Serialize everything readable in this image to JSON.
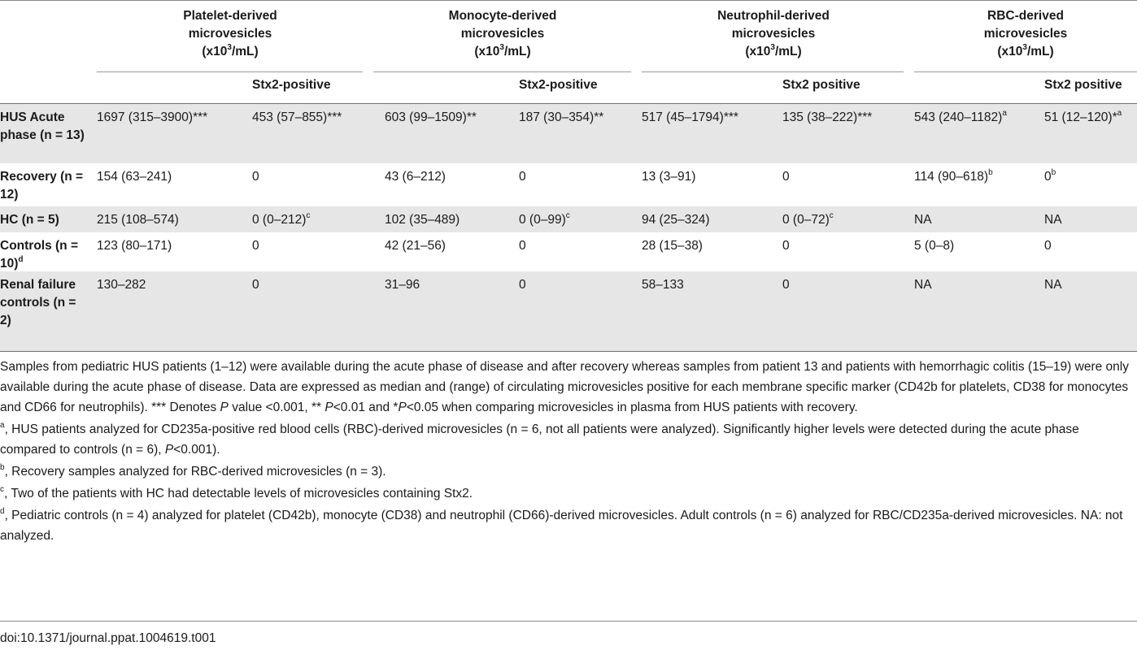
{
  "header": {
    "groups": [
      {
        "l1": "Platelet-derived",
        "l2": "microvesicles",
        "unit_pre": "(x10",
        "unit_sup": "3",
        "unit_post": "/mL)"
      },
      {
        "l1": "Monocyte-derived",
        "l2": "microvesicles",
        "unit_pre": "(x10",
        "unit_sup": "3",
        "unit_post": "/mL)"
      },
      {
        "l1": "Neutrophil-derived",
        "l2": "microvesicles",
        "unit_pre": "(x10",
        "unit_sup": "3",
        "unit_post": "/mL)"
      },
      {
        "l1": "RBC-derived",
        "l2": "microvesicles",
        "unit_pre": "(x10",
        "unit_sup": "3",
        "unit_post": "/mL)"
      }
    ],
    "stx_labels": [
      "Stx2-positive",
      "Stx2-positive",
      "Stx2 positive",
      "Stx2 positive"
    ]
  },
  "rows": [
    {
      "label": "HUS Acute phase (n = 13)",
      "label_sup": "",
      "cells": [
        {
          "t": "1697 (315–3900)***",
          "s": ""
        },
        {
          "t": "453 (57–855)***",
          "s": ""
        },
        {
          "t": "603 (99–1509)**",
          "s": ""
        },
        {
          "t": "187 (30–354)**",
          "s": ""
        },
        {
          "t": "517 (45–1794)***",
          "s": ""
        },
        {
          "t": "135 (38–222)***",
          "s": ""
        },
        {
          "t": "543 (240–1182)",
          "s": "a"
        },
        {
          "t": "51 (12–120)*",
          "s": "a"
        }
      ]
    },
    {
      "label": "Recovery (n = 12)",
      "label_sup": "",
      "cells": [
        {
          "t": "154 (63–241)",
          "s": ""
        },
        {
          "t": "0",
          "s": ""
        },
        {
          "t": "43 (6–212)",
          "s": ""
        },
        {
          "t": "0",
          "s": ""
        },
        {
          "t": "13 (3–91)",
          "s": ""
        },
        {
          "t": "0",
          "s": ""
        },
        {
          "t": "114 (90–618)",
          "s": "b"
        },
        {
          "t": "0",
          "s": "b"
        }
      ]
    },
    {
      "label": "HC (n = 5)",
      "label_sup": "",
      "cells": [
        {
          "t": "215 (108–574)",
          "s": ""
        },
        {
          "t": "0 (0–212)",
          "s": "c"
        },
        {
          "t": "102 (35–489)",
          "s": ""
        },
        {
          "t": "0 (0–99)",
          "s": "c"
        },
        {
          "t": "94 (25–324)",
          "s": ""
        },
        {
          "t": "0 (0–72)",
          "s": "c"
        },
        {
          "t": "NA",
          "s": ""
        },
        {
          "t": "NA",
          "s": ""
        }
      ]
    },
    {
      "label": "Controls (n = 10)",
      "label_sup": "d",
      "cells": [
        {
          "t": "123 (80–171)",
          "s": ""
        },
        {
          "t": "0",
          "s": ""
        },
        {
          "t": "42 (21–56)",
          "s": ""
        },
        {
          "t": "0",
          "s": ""
        },
        {
          "t": "28 (15–38)",
          "s": ""
        },
        {
          "t": "0",
          "s": ""
        },
        {
          "t": "5 (0–8)",
          "s": ""
        },
        {
          "t": "0",
          "s": ""
        }
      ]
    },
    {
      "label": "Renal failure controls (n = 2)",
      "label_sup": "",
      "cells": [
        {
          "t": "130–282",
          "s": ""
        },
        {
          "t": "0",
          "s": ""
        },
        {
          "t": "31–96",
          "s": ""
        },
        {
          "t": "0",
          "s": ""
        },
        {
          "t": "58–133",
          "s": ""
        },
        {
          "t": "0",
          "s": ""
        },
        {
          "t": "NA",
          "s": ""
        },
        {
          "t": "NA",
          "s": ""
        }
      ]
    }
  ],
  "footnote": {
    "main_a": "Samples from pediatric HUS patients (1–12) were available during the acute phase of disease and after recovery whereas samples from patient 13 and patients with hemorrhagic colitis (15–19) were only available during the acute phase of disease. Data are expressed as median and (range) of circulating microvesicles positive for each membrane specific marker (CD42b for platelets, CD38 for monocytes and CD66 for neutrophils). *** Denotes ",
    "main_p1": "P",
    "main_b": " value <0.001, ** ",
    "main_p2": "P",
    "main_c": "<0.01 and  *",
    "main_p3": "P",
    "main_d": "<0.05 when comparing microvesicles in plasma from HUS patients with recovery.",
    "a_sup": "a",
    "a_text": ", HUS patients analyzed for CD235a-positive red blood cells (RBC)-derived microvesicles (n = 6, not all patients were analyzed). Significantly higher levels were detected during the acute phase compared to controls (n = 6), ",
    "a_p": "P",
    "a_end": "<0.001).",
    "b_sup": "b",
    "b_text": ", Recovery samples analyzed for RBC-derived microvesicles (n = 3).",
    "c_sup": "c",
    "c_text": ", Two of the patients with HC had detectable levels of microvesicles containing Stx2.",
    "d_sup": "d",
    "d_text": ", Pediatric controls (n = 4) analyzed for platelet (CD42b), monocyte (CD38) and neutrophil (CD66)-derived microvesicles. Adult controls (n = 6) analyzed for RBC/CD235a-derived microvesicles. NA: not analyzed."
  },
  "doi": "doi:10.1371/journal.ppat.1004619.t001"
}
